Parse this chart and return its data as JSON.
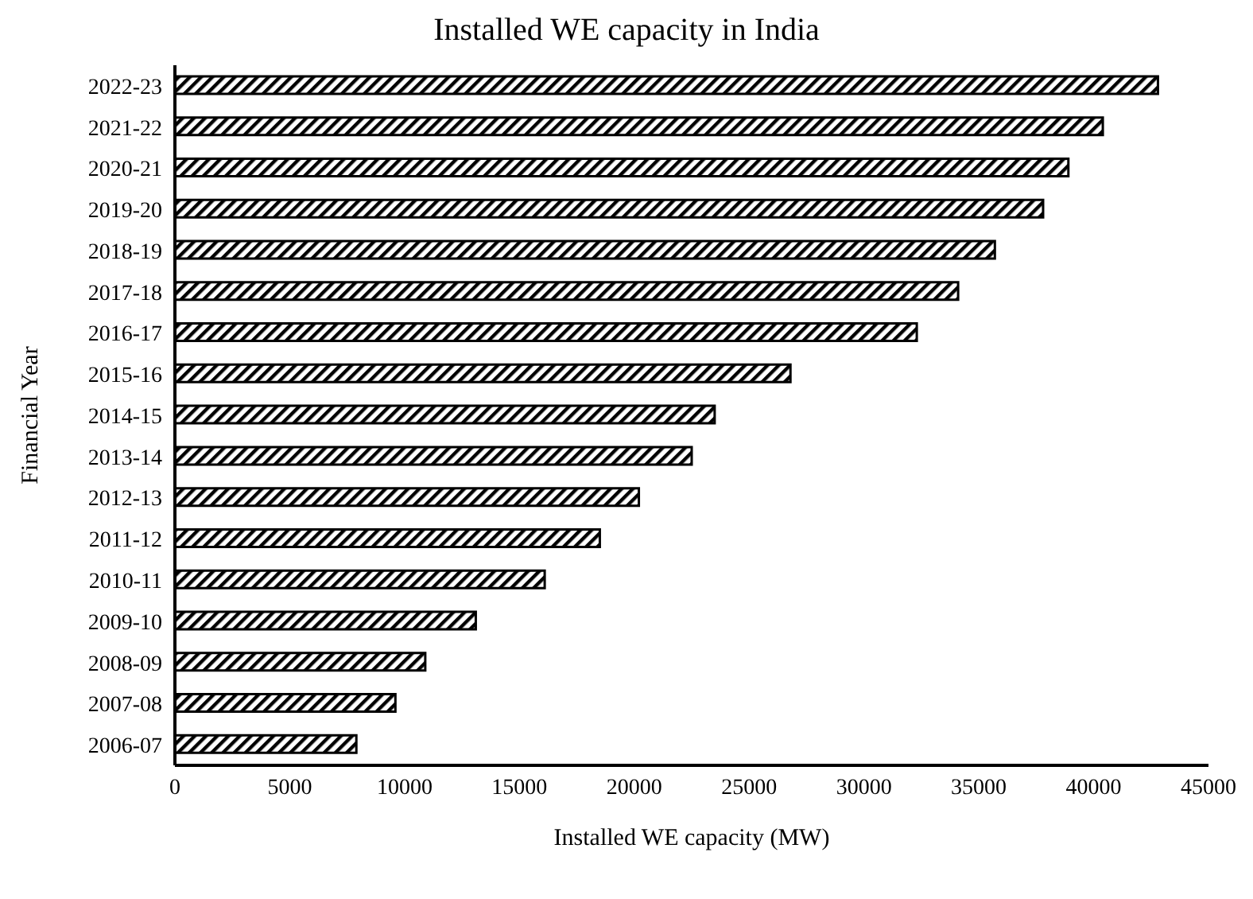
{
  "chart_data": {
    "type": "bar",
    "orientation": "horizontal",
    "title": "Installed WE capacity in India",
    "xlabel": "Installed WE capacity (MW)",
    "ylabel": "Financial  Year",
    "categories": [
      "2022-23",
      "2021-22",
      "2020-21",
      "2019-20",
      "2018-19",
      "2017-18",
      "2016-17",
      "2015-16",
      "2014-15",
      "2013-14",
      "2012-13",
      "2011-12",
      "2010-11",
      "2009-10",
      "2008-09",
      "2007-08",
      "2006-07"
    ],
    "values": [
      42800,
      40400,
      38900,
      37800,
      35700,
      34100,
      32300,
      26800,
      23500,
      22500,
      20200,
      18500,
      16100,
      13100,
      10900,
      9600,
      7900
    ],
    "color": "#000000",
    "xlim": [
      0,
      45000
    ],
    "xticks": [
      0,
      5000,
      10000,
      15000,
      20000,
      25000,
      30000,
      35000,
      40000,
      45000
    ],
    "grid": false
  }
}
